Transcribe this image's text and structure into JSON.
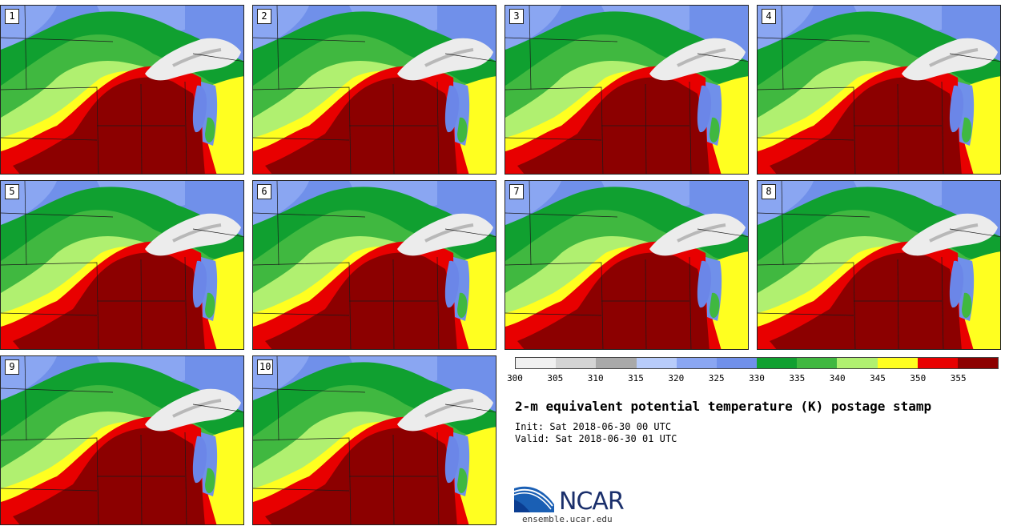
{
  "title": "2-m equivalent potential temperature (K) postage stamp",
  "init": "Init: Sat 2018-06-30 00 UTC",
  "valid": "Valid: Sat 2018-06-30 01 UTC",
  "stamps": [
    "1",
    "2",
    "3",
    "4",
    "5",
    "6",
    "7",
    "8",
    "9",
    "10"
  ],
  "colorbar": {
    "ticks": [
      "300",
      "305",
      "310",
      "315",
      "320",
      "325",
      "330",
      "335",
      "340",
      "345",
      "350",
      "355"
    ],
    "colors": [
      "#f0f0f0",
      "#d4d4d4",
      "#a9a9a9",
      "#b8ccfa",
      "#8aa6f2",
      "#7090ea",
      "#10a030",
      "#40b840",
      "#b0f070",
      "#ffff20",
      "#e80000",
      "#8c0000"
    ]
  },
  "logo": {
    "name": "NCAR",
    "url": "ensemble.ucar.edu"
  },
  "palette": {
    "ocean": "#6b86e8",
    "blue_dark": "#5070dd",
    "green_dark": "#0e9a2c",
    "green_mid": "#40b840",
    "green_light": "#b0f070",
    "yellow": "#ffff20",
    "red": "#e80000",
    "red_dark": "#8c0000",
    "lake_white": "#ececec",
    "lake_grey": "#b8b8b8"
  }
}
